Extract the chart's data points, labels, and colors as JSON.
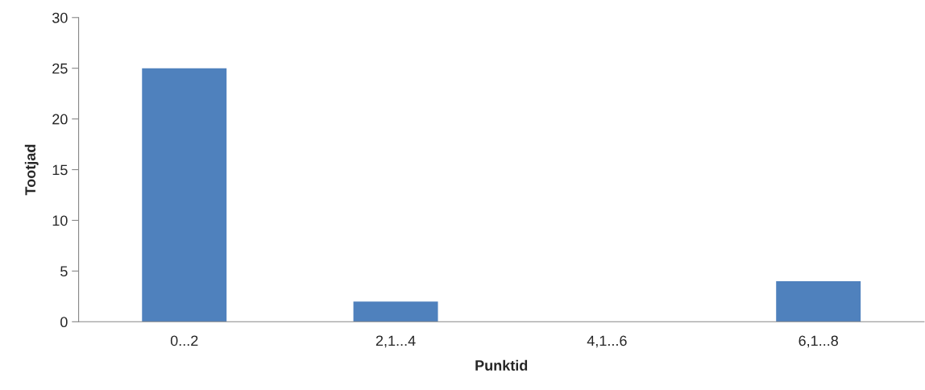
{
  "chart_data": {
    "type": "bar",
    "xlabel": "Punktid",
    "ylabel": "Tootjad",
    "categories": [
      "0...2",
      "2,1...4",
      "4,1...6",
      "6,1...8"
    ],
    "values": [
      25,
      2,
      0,
      4
    ],
    "color": "#4f81bd",
    "ylim": [
      0,
      30
    ],
    "yticks": [
      0,
      5,
      10,
      15,
      20,
      25,
      30
    ],
    "grid": false,
    "legend": false
  }
}
